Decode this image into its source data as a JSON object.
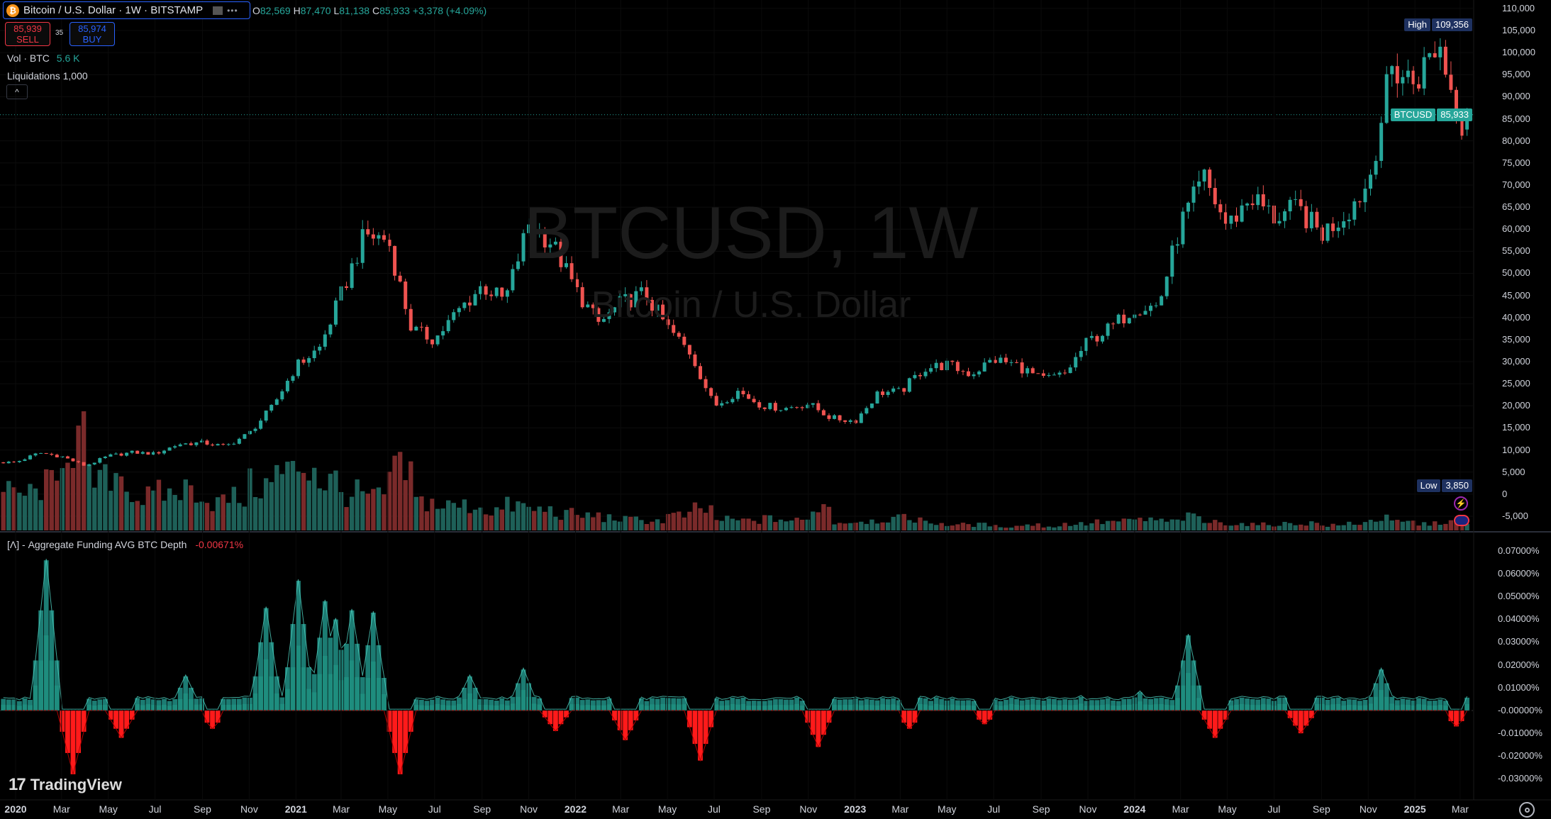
{
  "header": {
    "symbol_title": "Bitcoin / U.S. Dollar · 1W · BITSTAMP",
    "coin_glyph": "₿",
    "more_icon": "•••",
    "ohlc": {
      "o_label": "O",
      "o": "82,569",
      "h_label": "H",
      "h": "87,470",
      "l_label": "L",
      "l": "81,138",
      "c_label": "C",
      "c": "85,933",
      "change": "+3,378 (+4.09%)"
    },
    "sell": {
      "price": "85,939",
      "label": "SELL"
    },
    "buy": {
      "price": "85,974",
      "label": "BUY"
    },
    "spread": "35",
    "volume_label": "Vol · BTC",
    "volume_value": "5.6 K",
    "liquidations": "Liquidations 1,000",
    "collapse_icon": "^"
  },
  "watermark": {
    "title": "BTCUSD, 1W",
    "subtitle": "Bitcoin / U.S. Dollar"
  },
  "price_axis": {
    "ticks": [
      110000,
      105000,
      100000,
      95000,
      90000,
      85000,
      80000,
      75000,
      70000,
      65000,
      60000,
      55000,
      50000,
      45000,
      40000,
      35000,
      30000,
      25000,
      20000,
      15000,
      10000,
      5000,
      0,
      -5000
    ],
    "high": {
      "label": "High",
      "value": "109,356",
      "num": 109356
    },
    "low": {
      "label": "Low",
      "value": "3,850",
      "num": 3850
    },
    "last": {
      "label": "BTCUSD",
      "value": "85,933",
      "num": 85933
    }
  },
  "funding": {
    "title": "[Λ] - Aggregate Funding AVG BTC Depth",
    "value": "-0.00671%",
    "ticks": [
      "0.07000%",
      "0.06000%",
      "0.05000%",
      "0.04000%",
      "0.03000%",
      "0.02000%",
      "0.01000%",
      "-0.00000%",
      "-0.01000%",
      "-0.02000%",
      "-0.03000%"
    ]
  },
  "time_axis": [
    "2020",
    "Mar",
    "May",
    "Jul",
    "Sep",
    "Nov",
    "2021",
    "Mar",
    "May",
    "Jul",
    "Sep",
    "Nov",
    "2022",
    "Mar",
    "May",
    "Jul",
    "Sep",
    "Nov",
    "2023",
    "Mar",
    "May",
    "Jul",
    "Sep",
    "Nov",
    "2024",
    "Mar",
    "May",
    "Jul",
    "Sep",
    "Nov",
    "2025",
    "Mar"
  ],
  "branding": "TradingView",
  "colors": {
    "up": "#26a69a",
    "down": "#ef5350",
    "vol_up": "#1e6058",
    "vol_down": "#7a2a2a",
    "accent": "#2962ff",
    "funding_pos": "#26a69a",
    "funding_neg": "#ff1a1a"
  },
  "chart_data": {
    "type": "candlestick",
    "interval": "1W",
    "first_week": "2019-12-16",
    "monthly_anchor_start": "2020-01-01",
    "monthly_close_anchors": [
      7200,
      9350,
      8550,
      6400,
      8630,
      9450,
      9140,
      11330,
      11650,
      10780,
      13800,
      19700,
      28990,
      33100,
      45200,
      58800,
      57700,
      37300,
      35000,
      41500,
      47100,
      43800,
      61300,
      57000,
      46300,
      38500,
      43200,
      45500,
      37700,
      31800,
      19900,
      23300,
      20100,
      19400,
      20500,
      17200,
      16550,
      23100,
      23100,
      28500,
      29300,
      27200,
      30500,
      29200,
      25900,
      27000,
      34600,
      37700,
      42300,
      42600,
      61200,
      71300,
      60600,
      67500,
      62700,
      64600,
      58900,
      63300,
      70300,
      96400,
      93400,
      102400,
      84300,
      86000
    ],
    "monthly_volume_k_btc": [
      45,
      55,
      110,
      60,
      70,
      40,
      45,
      50,
      35,
      40,
      55,
      70,
      80,
      60,
      45,
      40,
      70,
      35,
      30,
      30,
      25,
      30,
      25,
      20,
      18,
      15,
      13,
      12,
      18,
      25,
      13,
      12,
      14,
      12,
      30,
      10,
      12,
      14,
      15,
      9,
      7,
      7,
      5,
      7,
      5,
      8,
      10,
      11,
      13,
      11,
      16,
      10,
      8,
      7,
      8,
      9,
      6,
      9,
      14,
      10,
      8,
      11,
      8
    ],
    "last_candle": {
      "open": 82569,
      "high": 87470,
      "low": 81138,
      "close": 85933
    },
    "funding_baseline_pct": 0.0055,
    "funding_spikes_pct": [
      {
        "date": "2020-02-10",
        "value": 0.066
      },
      {
        "date": "2020-03-16",
        "value": -0.028
      },
      {
        "date": "2020-05-18",
        "value": -0.012
      },
      {
        "date": "2020-08-10",
        "value": 0.015
      },
      {
        "date": "2020-09-14",
        "value": -0.008
      },
      {
        "date": "2020-11-23",
        "value": 0.045
      },
      {
        "date": "2021-01-04",
        "value": 0.057
      },
      {
        "date": "2021-02-08",
        "value": 0.048
      },
      {
        "date": "2021-02-22",
        "value": 0.04
      },
      {
        "date": "2021-03-15",
        "value": 0.044
      },
      {
        "date": "2021-04-12",
        "value": 0.043
      },
      {
        "date": "2021-05-17",
        "value": -0.028
      },
      {
        "date": "2021-08-16",
        "value": 0.015
      },
      {
        "date": "2021-10-25",
        "value": 0.018
      },
      {
        "date": "2021-12-06",
        "value": -0.009
      },
      {
        "date": "2022-03-07",
        "value": -0.013
      },
      {
        "date": "2022-06-13",
        "value": -0.022
      },
      {
        "date": "2022-11-14",
        "value": -0.016
      },
      {
        "date": "2023-03-13",
        "value": -0.008
      },
      {
        "date": "2023-06-19",
        "value": -0.006
      },
      {
        "date": "2023-10-23",
        "value": 0.006
      },
      {
        "date": "2024-01-08",
        "value": 0.008
      },
      {
        "date": "2024-03-11",
        "value": 0.033
      },
      {
        "date": "2024-04-15",
        "value": -0.012
      },
      {
        "date": "2024-08-05",
        "value": -0.01
      },
      {
        "date": "2024-11-18",
        "value": 0.018
      },
      {
        "date": "2025-02-24",
        "value": -0.007
      }
    ]
  }
}
